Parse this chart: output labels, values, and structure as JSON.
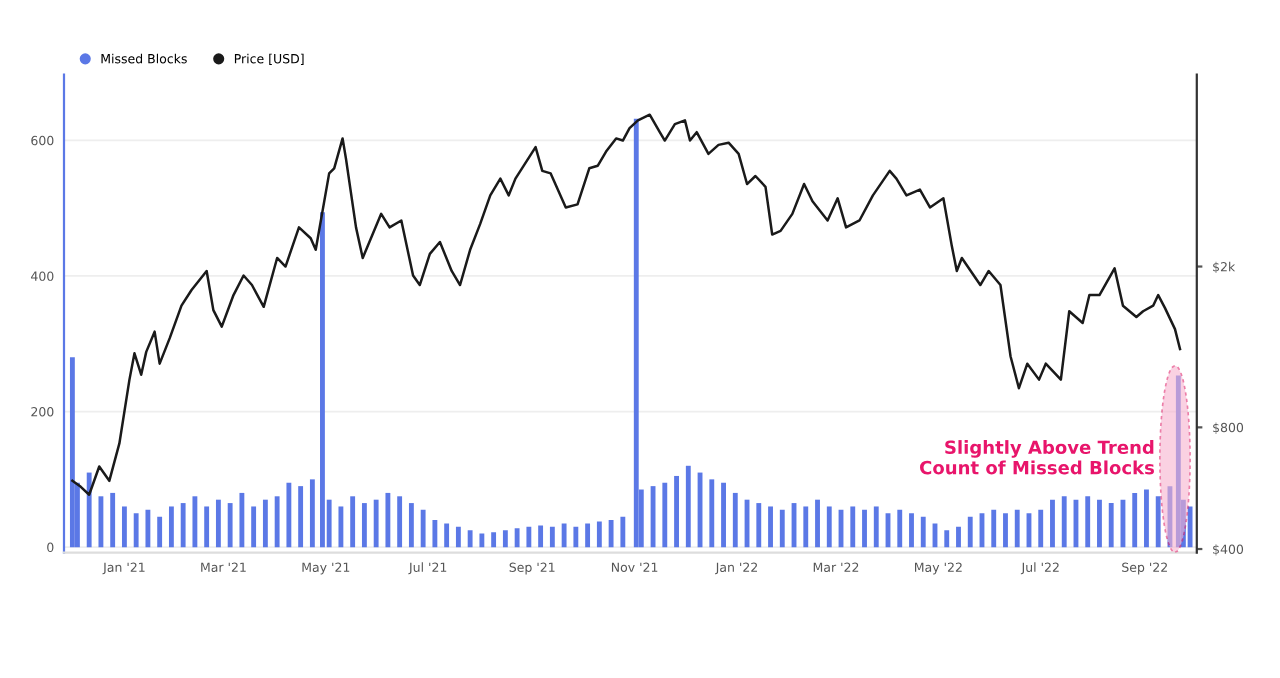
{
  "chart_data": {
    "type": "bar",
    "legend": "top left",
    "grid": "y",
    "ylim": [
      -8,
      697
    ],
    "yticks": [
      0,
      200,
      400,
      600
    ],
    "xlim": [
      "2020-11-26",
      "2022-10-02"
    ],
    "xticks": [
      {
        "value": "2021-01-01",
        "label": "Jan '21"
      },
      {
        "value": "2021-03-01",
        "label": "Mar '21"
      },
      {
        "value": "2021-05-01",
        "label": "May '21"
      },
      {
        "value": "2021-07-01",
        "label": "Jul '21"
      },
      {
        "value": "2021-09-01",
        "label": "Sep '21"
      },
      {
        "value": "2021-11-01",
        "label": "Nov '21"
      },
      {
        "value": "2022-01-01",
        "label": "Jan '22"
      },
      {
        "value": "2022-03-01",
        "label": "Mar '22"
      },
      {
        "value": "2022-05-01",
        "label": "May '22"
      },
      {
        "value": "2022-07-01",
        "label": "Jul '22"
      },
      {
        "value": "2022-09-01",
        "label": "Sep '22"
      }
    ],
    "log": "y2",
    "y2lim": [
      392,
      5970
    ],
    "y2ticks": [
      {
        "value": 400,
        "label": "$400"
      },
      {
        "value": 800,
        "label": "$800"
      },
      {
        "value": 2000,
        "label": "$2k"
      }
    ],
    "annotations": [
      {
        "text": "Slightly Above Trend\nCount of Missed Blocks",
        "x": "2022-09-19",
        "y": 130
      }
    ],
    "series": [
      {
        "name": "Missed Blocks",
        "color": "#5b78e6",
        "x": [
          "2020-12-01",
          "2020-12-04",
          "2020-12-11",
          "2020-12-18",
          "2020-12-25",
          "2021-01-01",
          "2021-01-08",
          "2021-01-15",
          "2021-01-22",
          "2021-01-29",
          "2021-02-05",
          "2021-02-12",
          "2021-02-19",
          "2021-02-26",
          "2021-03-05",
          "2021-03-12",
          "2021-03-19",
          "2021-03-26",
          "2021-04-02",
          "2021-04-09",
          "2021-04-16",
          "2021-04-23",
          "2021-04-29",
          "2021-05-03",
          "2021-05-10",
          "2021-05-17",
          "2021-05-24",
          "2021-05-31",
          "2021-06-07",
          "2021-06-14",
          "2021-06-21",
          "2021-06-28",
          "2021-07-05",
          "2021-07-12",
          "2021-07-19",
          "2021-07-26",
          "2021-08-02",
          "2021-08-09",
          "2021-08-16",
          "2021-08-23",
          "2021-08-30",
          "2021-09-06",
          "2021-09-13",
          "2021-09-20",
          "2021-09-27",
          "2021-10-04",
          "2021-10-11",
          "2021-10-18",
          "2021-10-25",
          "2021-11-02",
          "2021-11-05",
          "2021-11-12",
          "2021-11-19",
          "2021-11-26",
          "2021-12-03",
          "2021-12-10",
          "2021-12-17",
          "2021-12-24",
          "2021-12-31",
          "2022-01-07",
          "2022-01-14",
          "2022-01-21",
          "2022-01-28",
          "2022-02-04",
          "2022-02-11",
          "2022-02-18",
          "2022-02-25",
          "2022-03-04",
          "2022-03-11",
          "2022-03-18",
          "2022-03-25",
          "2022-04-01",
          "2022-04-08",
          "2022-04-15",
          "2022-04-22",
          "2022-04-29",
          "2022-05-06",
          "2022-05-13",
          "2022-05-20",
          "2022-05-27",
          "2022-06-03",
          "2022-06-10",
          "2022-06-17",
          "2022-06-24",
          "2022-07-01",
          "2022-07-08",
          "2022-07-15",
          "2022-07-22",
          "2022-07-29",
          "2022-08-05",
          "2022-08-12",
          "2022-08-19",
          "2022-08-26",
          "2022-09-02",
          "2022-09-09",
          "2022-09-16",
          "2022-09-21",
          "2022-09-24",
          "2022-09-28"
        ],
        "values": [
          280,
          95,
          110,
          75,
          80,
          60,
          50,
          55,
          45,
          60,
          65,
          75,
          60,
          70,
          65,
          80,
          60,
          70,
          75,
          95,
          90,
          100,
          494,
          70,
          60,
          75,
          65,
          70,
          80,
          75,
          65,
          55,
          40,
          35,
          30,
          25,
          20,
          22,
          25,
          28,
          30,
          32,
          30,
          35,
          30,
          35,
          38,
          40,
          45,
          632,
          85,
          90,
          95,
          105,
          120,
          110,
          100,
          95,
          80,
          70,
          65,
          60,
          55,
          65,
          60,
          70,
          60,
          55,
          60,
          55,
          60,
          50,
          55,
          50,
          45,
          35,
          25,
          30,
          45,
          50,
          55,
          50,
          55,
          50,
          55,
          70,
          75,
          70,
          75,
          70,
          65,
          70,
          80,
          85,
          75,
          90,
          253,
          70,
          60
        ]
      },
      {
        "name": "Price [USD]",
        "type": "line",
        "axis": "y2",
        "color": "#1a1a1a",
        "x": [
          "2020-12-01",
          "2020-12-06",
          "2020-12-11",
          "2020-12-17",
          "2020-12-23",
          "2020-12-29",
          "2021-01-04",
          "2021-01-07",
          "2021-01-11",
          "2021-01-14",
          "2021-01-19",
          "2021-01-22",
          "2021-01-28",
          "2021-02-04",
          "2021-02-10",
          "2021-02-19",
          "2021-02-23",
          "2021-02-28",
          "2021-03-07",
          "2021-03-13",
          "2021-03-18",
          "2021-03-25",
          "2021-04-02",
          "2021-04-07",
          "2021-04-15",
          "2021-04-22",
          "2021-04-25",
          "2021-05-03",
          "2021-05-06",
          "2021-05-11",
          "2021-05-13",
          "2021-05-19",
          "2021-05-23",
          "2021-06-03",
          "2021-06-08",
          "2021-06-15",
          "2021-06-22",
          "2021-06-26",
          "2021-07-02",
          "2021-07-08",
          "2021-07-15",
          "2021-07-20",
          "2021-07-26",
          "2021-08-01",
          "2021-08-07",
          "2021-08-13",
          "2021-08-18",
          "2021-08-22",
          "2021-09-03",
          "2021-09-07",
          "2021-09-12",
          "2021-09-21",
          "2021-09-28",
          "2021-10-05",
          "2021-10-10",
          "2021-10-15",
          "2021-10-21",
          "2021-10-25",
          "2021-10-29",
          "2021-11-03",
          "2021-11-10",
          "2021-11-16",
          "2021-11-19",
          "2021-11-25",
          "2021-12-01",
          "2021-12-04",
          "2021-12-08",
          "2021-12-15",
          "2021-12-21",
          "2021-12-27",
          "2022-01-02",
          "2022-01-07",
          "2022-01-12",
          "2022-01-18",
          "2022-01-22",
          "2022-01-27",
          "2022-02-03",
          "2022-02-10",
          "2022-02-15",
          "2022-02-24",
          "2022-03-02",
          "2022-03-07",
          "2022-03-15",
          "2022-03-23",
          "2022-04-02",
          "2022-04-06",
          "2022-04-12",
          "2022-04-20",
          "2022-04-26",
          "2022-05-04",
          "2022-05-09",
          "2022-05-12",
          "2022-05-15",
          "2022-05-26",
          "2022-05-31",
          "2022-06-07",
          "2022-06-13",
          "2022-06-18",
          "2022-06-23",
          "2022-06-30",
          "2022-07-04",
          "2022-07-13",
          "2022-07-18",
          "2022-07-26",
          "2022-07-30",
          "2022-08-05",
          "2022-08-14",
          "2022-08-19",
          "2022-08-27",
          "2022-08-31",
          "2022-09-06",
          "2022-09-09",
          "2022-09-13",
          "2022-09-19",
          "2022-09-22"
        ],
        "values": [
          590,
          570,
          545,
          640,
          590,
          730,
          1050,
          1220,
          1080,
          1230,
          1380,
          1150,
          1330,
          1600,
          1750,
          1950,
          1560,
          1420,
          1700,
          1900,
          1800,
          1590,
          2100,
          2000,
          2500,
          2350,
          2200,
          3400,
          3500,
          4150,
          3700,
          2500,
          2100,
          2700,
          2500,
          2600,
          1900,
          1800,
          2150,
          2300,
          1950,
          1800,
          2200,
          2550,
          3000,
          3300,
          3000,
          3300,
          3950,
          3450,
          3400,
          2800,
          2850,
          3500,
          3550,
          3850,
          4150,
          4100,
          4400,
          4600,
          4750,
          4300,
          4100,
          4500,
          4600,
          4100,
          4300,
          3800,
          4000,
          4050,
          3800,
          3200,
          3350,
          3150,
          2400,
          2450,
          2700,
          3200,
          2900,
          2600,
          2950,
          2500,
          2600,
          3000,
          3450,
          3300,
          3000,
          3100,
          2800,
          2950,
          2250,
          1950,
          2100,
          1800,
          1950,
          1800,
          1200,
          1000,
          1150,
          1050,
          1150,
          1050,
          1550,
          1450,
          1700,
          1700,
          1980,
          1600,
          1500,
          1550,
          1600,
          1700,
          1580,
          1400,
          1250
        ]
      }
    ]
  }
}
